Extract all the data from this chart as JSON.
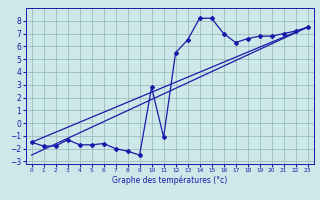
{
  "bg_color": "#cce8e8",
  "grid_color": "#9abebe",
  "line_color": "#1a1aaa",
  "x_label": "Graphe des températures (°c)",
  "xlim": [
    -0.5,
    23.5
  ],
  "ylim": [
    -3.2,
    9.0
  ],
  "yticks": [
    -3,
    -2,
    -1,
    0,
    1,
    2,
    3,
    4,
    5,
    6,
    7,
    8
  ],
  "xticks": [
    0,
    1,
    2,
    3,
    4,
    5,
    6,
    7,
    8,
    9,
    10,
    11,
    12,
    13,
    14,
    15,
    16,
    17,
    18,
    19,
    20,
    21,
    22,
    23
  ],
  "zigzag_x": [
    0,
    1,
    2,
    3,
    4,
    5,
    6,
    7,
    8,
    9,
    10,
    11,
    12,
    13,
    14,
    15,
    16,
    17,
    18,
    19,
    20,
    21,
    22,
    23
  ],
  "zigzag_y": [
    -1.5,
    -1.8,
    -1.8,
    -1.3,
    -1.7,
    -1.7,
    -1.6,
    -2.0,
    -2.2,
    -2.5,
    2.8,
    -1.1,
    5.5,
    6.5,
    8.2,
    8.2,
    7.0,
    6.3,
    6.6,
    6.8,
    6.8,
    7.0,
    7.2,
    7.5
  ],
  "line1_x": [
    0,
    23
  ],
  "line1_y": [
    -1.5,
    7.5
  ],
  "line2_x": [
    0,
    23
  ],
  "line2_y": [
    -2.5,
    7.5
  ]
}
